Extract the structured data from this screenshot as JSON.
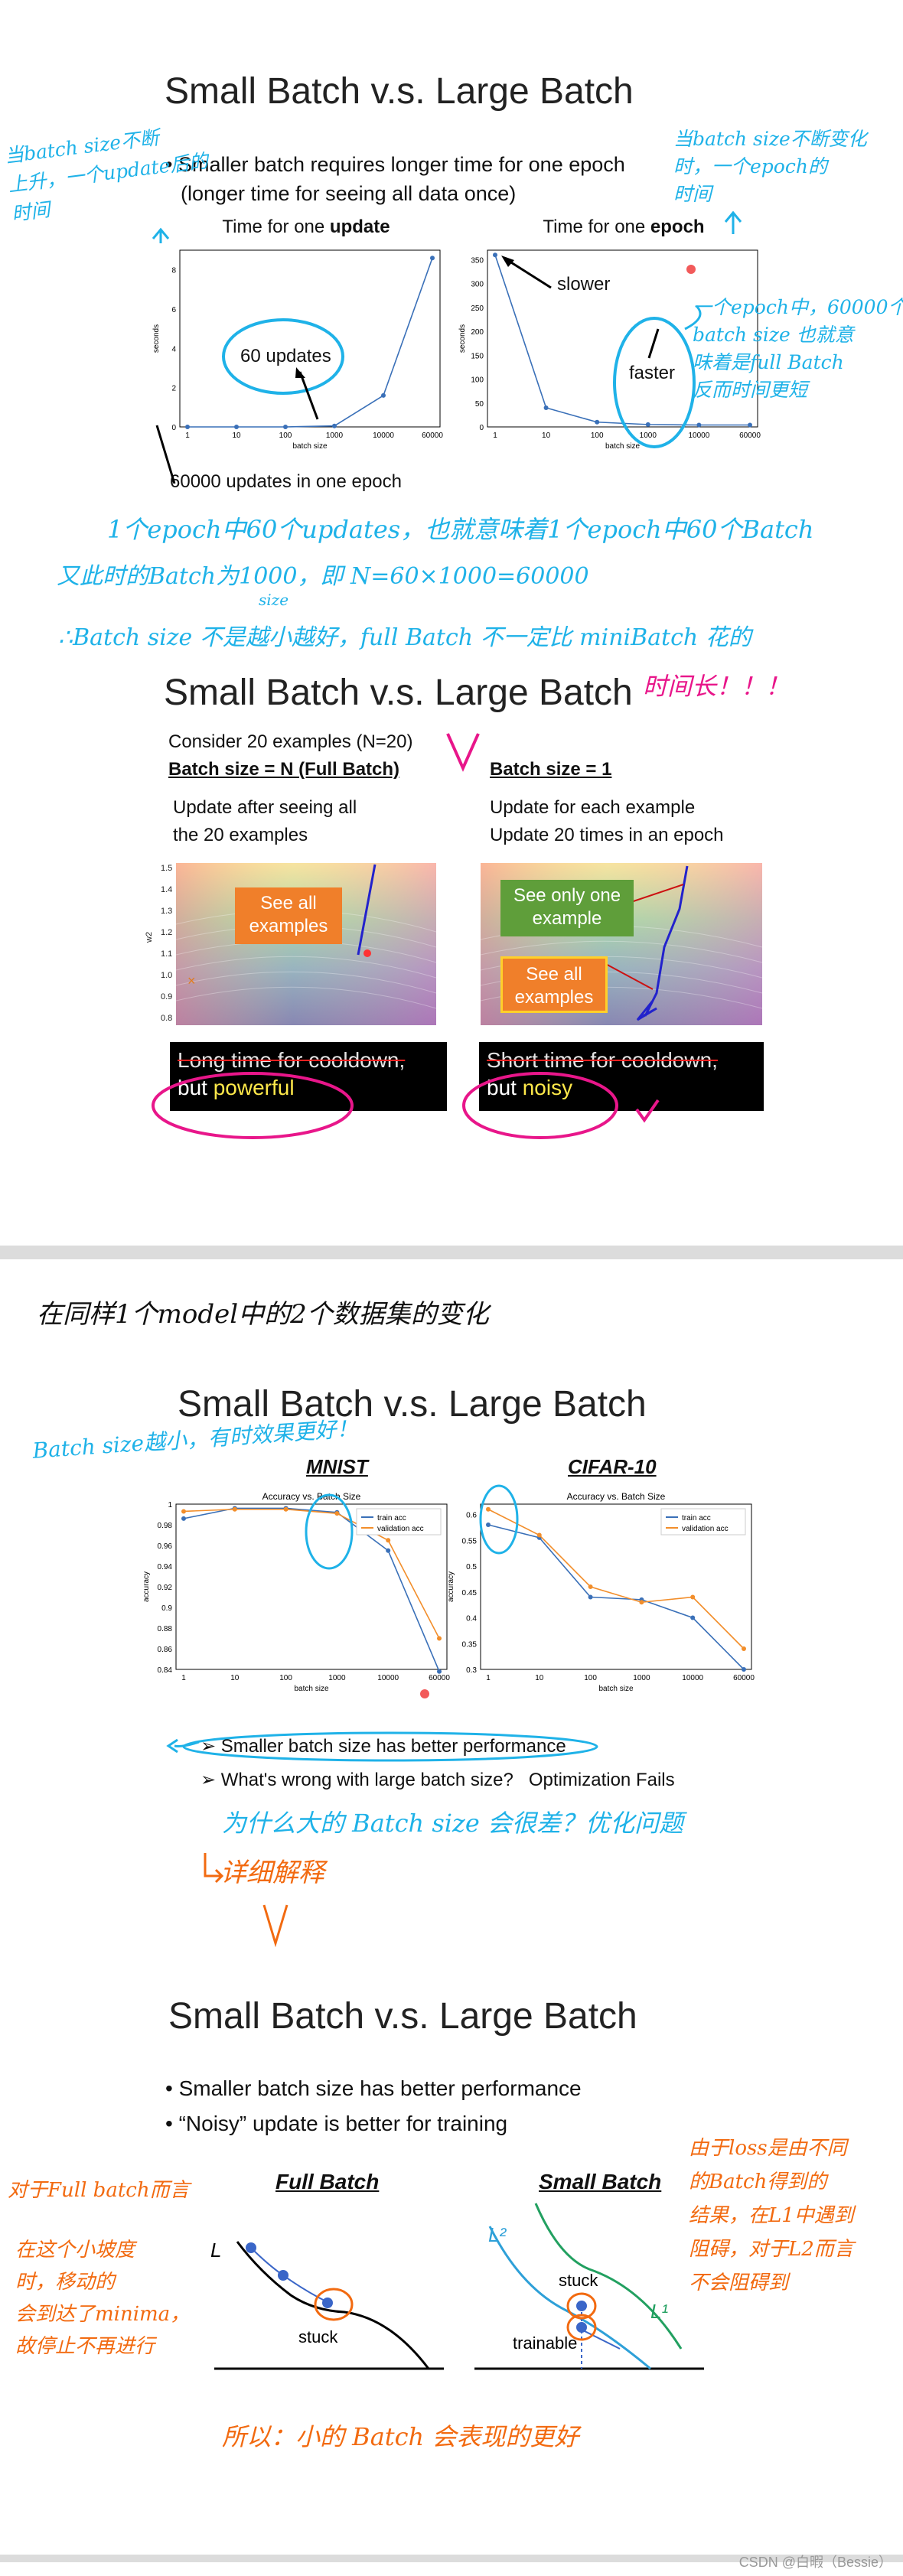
{
  "slide1": {
    "title": "Small Batch v.s. Large Batch",
    "bullet_line1": "Smaller batch requires longer time for one epoch",
    "bullet_line2": "(longer time for seeing all data once)",
    "left_chart_title_pre": "Time for one ",
    "left_chart_title_bold": "update",
    "right_chart_title_pre": "Time for one ",
    "right_chart_title_bold": "epoch",
    "annot_60_updates": "60 updates",
    "annot_60000_updates": "60000 updates in one epoch",
    "annot_slower": "slower",
    "annot_faster": "faster",
    "xlabel": "batch size",
    "ylabel": "seconds",
    "hw_left_top": "当batch size不断\n上升，一个update后的\n时间",
    "hw_right_top": "当batch size不断变化\n时，一个epoch的\n时间",
    "hw_right_mid": "一个epoch中，60000个\nbatch size 也就意\n味着是full Batch\n反而时间更短",
    "hw_bottom1": "1个epoch中60个updates，也就意味着1个epoch中60个Batch",
    "hw_bottom2": "又此时的Batch为1000，即 N=60×1000=60000",
    "hw_bottom2_small": "size",
    "hw_bottom3": "∴Batch size 不是越小越好，full Batch 不一定比 miniBatch 花的",
    "hw_bottom4": "时间长！！！"
  },
  "slide2": {
    "title": "Small Batch v.s. Large Batch",
    "consider": "Consider 20 examples (N=20)",
    "left_head": "Batch size = N (Full Batch)",
    "right_head": "Batch size = 1",
    "left_desc1": "Update after seeing all",
    "left_desc2": "the 20 examples",
    "right_desc1": "Update for each example",
    "right_desc2": "Update 20 times in an epoch",
    "see_all": "See all\nexamples",
    "see_only_one": "See only one\nexample",
    "left_band1": "Long time for cooldown,",
    "left_band2_pre": "but ",
    "left_band2_hl": "powerful",
    "right_band1": "Short time for cooldown,",
    "right_band2_pre": "but ",
    "right_band2_hl": "noisy",
    "ylabel": "w2"
  },
  "mid_note": "在同样1个model中的2个数据集的变化",
  "slide3": {
    "title": "Small Batch v.s. Large Batch",
    "hw_side": "Batch size越小，有时效果更好！",
    "mnist_label": "MNIST",
    "cifar_label": "CIFAR-10",
    "plot_title": "Accuracy vs. Batch Size",
    "legend_train": "train acc",
    "legend_val": "validation acc",
    "xlabel": "batch size",
    "ylabel": "accuracy",
    "bullet1": "Smaller batch size has better performance",
    "bullet2_pre": "What's wrong with large batch size?",
    "bullet2_post": "Optimization Fails",
    "hw_q": "为什么大的 Batch size 会很差？优化问题",
    "hw_detail": "详细解释"
  },
  "slide4": {
    "title": "Small Batch v.s. Large Batch",
    "bullet1": "Smaller batch size has better performance",
    "bullet2": "“Noisy” update is better for training",
    "full_batch": "Full Batch",
    "small_batch": "Small Batch",
    "L": "L",
    "L1": "L¹",
    "L2": "L²",
    "stuck": "stuck",
    "trainable": "trainable",
    "hw_left_a": "对于Full batch而言",
    "hw_left_b": "在这个小坡度\n时，移动的\n会到达了minima，\n故停止不再进行",
    "hw_right": "由于loss是由不同\n的Batch得到的\n结果，在L1中遇到\n阻碍，对于L2而言\n不会阻碍到",
    "hw_bottom": "所以：小的 Batch 会表现的更好"
  },
  "footer": "CSDN @白暇（Bessie）",
  "chart_data": [
    {
      "type": "line",
      "title": "Time for one update",
      "xlabel": "batch size",
      "ylabel": "seconds",
      "categories": [
        "1",
        "10",
        "100",
        "1000",
        "10000",
        "60000"
      ],
      "series": [
        {
          "values": [
            0.0,
            0.0,
            0.0,
            0.05,
            1.6,
            8.6
          ]
        }
      ],
      "ylim": [
        0,
        9
      ],
      "yticks": [
        0,
        2,
        4,
        6,
        8
      ]
    },
    {
      "type": "line",
      "title": "Time for one epoch",
      "xlabel": "batch size",
      "ylabel": "seconds",
      "categories": [
        "1",
        "10",
        "100",
        "1000",
        "10000",
        "60000"
      ],
      "series": [
        {
          "values": [
            360,
            40,
            10,
            5,
            4,
            4
          ]
        }
      ],
      "ylim": [
        0,
        370
      ],
      "yticks": [
        0,
        50,
        100,
        150,
        200,
        250,
        300,
        350
      ]
    },
    {
      "type": "line",
      "title": "Accuracy vs. Batch Size",
      "subtitle": "MNIST",
      "xlabel": "batch size",
      "ylabel": "accuracy",
      "categories": [
        "1",
        "10",
        "100",
        "1000",
        "10000",
        "60000"
      ],
      "series": [
        {
          "name": "train acc",
          "values": [
            0.986,
            0.996,
            0.996,
            0.992,
            0.955,
            0.838
          ]
        },
        {
          "name": "validation acc",
          "values": [
            0.993,
            0.995,
            0.995,
            0.991,
            0.965,
            0.87
          ]
        }
      ],
      "ylim": [
        0.84,
        1.0
      ],
      "yticks": [
        0.84,
        0.86,
        0.88,
        0.9,
        0.92,
        0.94,
        0.96,
        0.98,
        1.0
      ]
    },
    {
      "type": "line",
      "title": "Accuracy vs. Batch Size",
      "subtitle": "CIFAR-10",
      "xlabel": "batch size",
      "ylabel": "accuracy",
      "categories": [
        "1",
        "10",
        "100",
        "1000",
        "10000",
        "60000"
      ],
      "series": [
        {
          "name": "train acc",
          "values": [
            0.58,
            0.555,
            0.44,
            0.435,
            0.4,
            0.3
          ]
        },
        {
          "name": "validation acc",
          "values": [
            0.61,
            0.56,
            0.46,
            0.43,
            0.44,
            0.34
          ]
        }
      ],
      "ylim": [
        0.3,
        0.62
      ],
      "yticks": [
        0.3,
        0.35,
        0.4,
        0.45,
        0.5,
        0.55,
        0.6
      ]
    }
  ]
}
